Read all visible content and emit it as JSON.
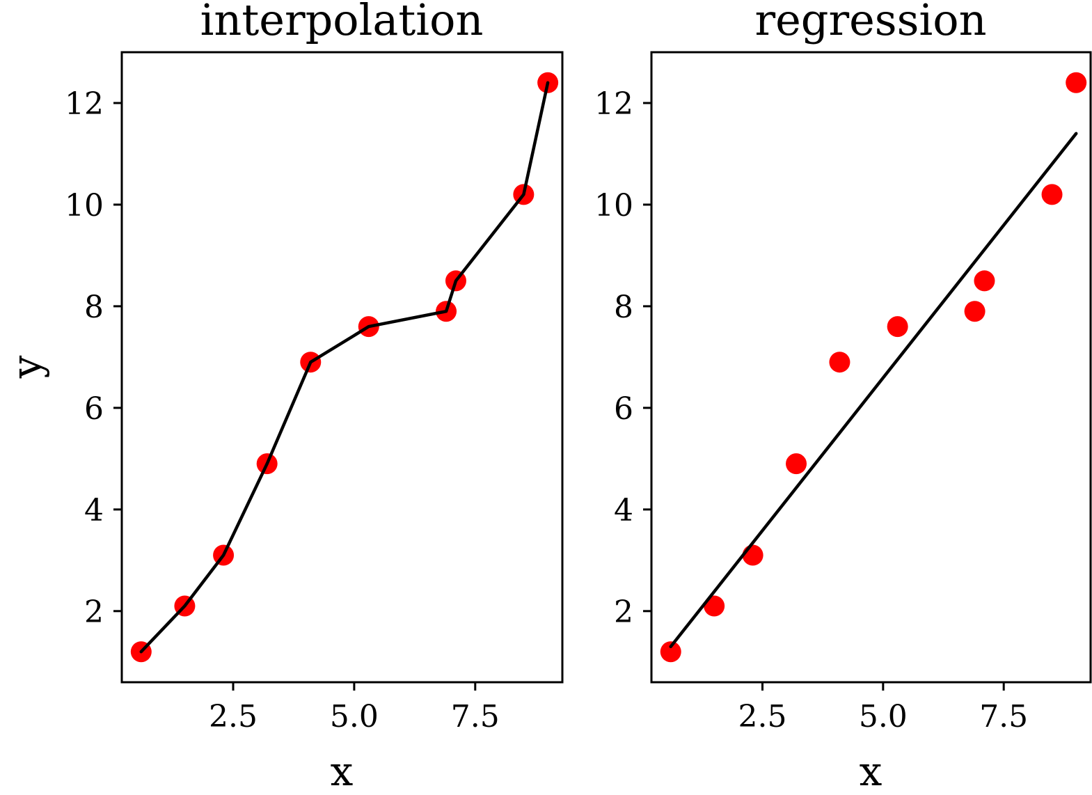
{
  "chart_data": [
    {
      "type": "scatter",
      "title": "interpolation",
      "xlabel": "x",
      "ylabel": "y",
      "xlim": [
        0.2,
        9.3
      ],
      "ylim": [
        0.6,
        13.0
      ],
      "xticks": [
        2.5,
        5.0,
        7.5
      ],
      "xtick_labels": [
        "2.5",
        "5.0",
        "7.5"
      ],
      "yticks": [
        2,
        4,
        6,
        8,
        10,
        12
      ],
      "ytick_labels": [
        "2",
        "4",
        "6",
        "8",
        "10",
        "12"
      ],
      "grid": false,
      "points": {
        "x": [
          0.6,
          1.5,
          2.3,
          3.2,
          4.1,
          5.3,
          6.9,
          7.1,
          8.5,
          9.0
        ],
        "y": [
          1.2,
          2.1,
          3.1,
          4.9,
          6.9,
          7.6,
          7.9,
          8.5,
          10.2,
          12.4
        ],
        "color": "#ff0000"
      },
      "line": {
        "kind": "interpolation",
        "x": [
          0.6,
          1.5,
          2.3,
          3.2,
          4.1,
          5.3,
          6.9,
          7.1,
          8.5,
          9.0
        ],
        "y": [
          1.2,
          2.1,
          3.1,
          4.9,
          6.9,
          7.6,
          7.9,
          8.5,
          10.2,
          12.4
        ],
        "color": "#000000"
      }
    },
    {
      "type": "scatter",
      "title": "regression",
      "xlabel": "x",
      "ylabel": "",
      "xlim": [
        0.2,
        9.3
      ],
      "ylim": [
        0.6,
        13.0
      ],
      "xticks": [
        2.5,
        5.0,
        7.5
      ],
      "xtick_labels": [
        "2.5",
        "5.0",
        "7.5"
      ],
      "yticks": [
        2,
        4,
        6,
        8,
        10,
        12
      ],
      "ytick_labels": [
        "2",
        "4",
        "6",
        "8",
        "10",
        "12"
      ],
      "grid": false,
      "points": {
        "x": [
          0.6,
          1.5,
          2.3,
          3.2,
          4.1,
          5.3,
          6.9,
          7.1,
          8.5,
          9.0
        ],
        "y": [
          1.2,
          2.1,
          3.1,
          4.9,
          6.9,
          7.6,
          7.9,
          8.5,
          10.2,
          12.4
        ],
        "color": "#ff0000"
      },
      "line": {
        "kind": "regression",
        "x": [
          0.6,
          9.0
        ],
        "y": [
          1.3,
          11.4
        ],
        "color": "#000000"
      }
    }
  ]
}
